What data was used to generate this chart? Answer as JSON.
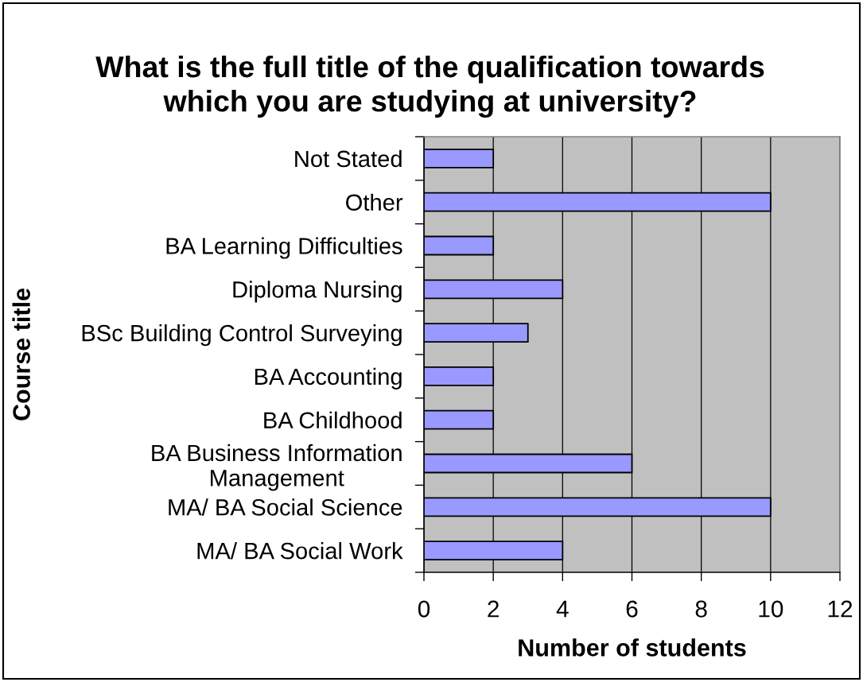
{
  "chart_data": {
    "type": "bar",
    "orientation": "horizontal",
    "title": "What is the full title of the qualification towards\nwhich you are studying at university?",
    "xlabel": "Number of students",
    "ylabel": "Course title",
    "categories": [
      "Not Stated",
      "Other",
      "BA Learning Difficulties",
      "Diploma Nursing",
      "BSc Building Control Surveying",
      "BA Accounting",
      "BA Childhood",
      "BA Business Information\nManagement",
      "MA/ BA Social Science",
      "MA/ BA Social Work"
    ],
    "values": [
      2,
      10,
      2,
      4,
      3,
      2,
      2,
      6,
      10,
      4
    ],
    "color": "#9999ff",
    "xlim": [
      0,
      12
    ],
    "xticks": [
      0,
      2,
      4,
      6,
      8,
      10,
      12
    ],
    "grid": "x"
  }
}
